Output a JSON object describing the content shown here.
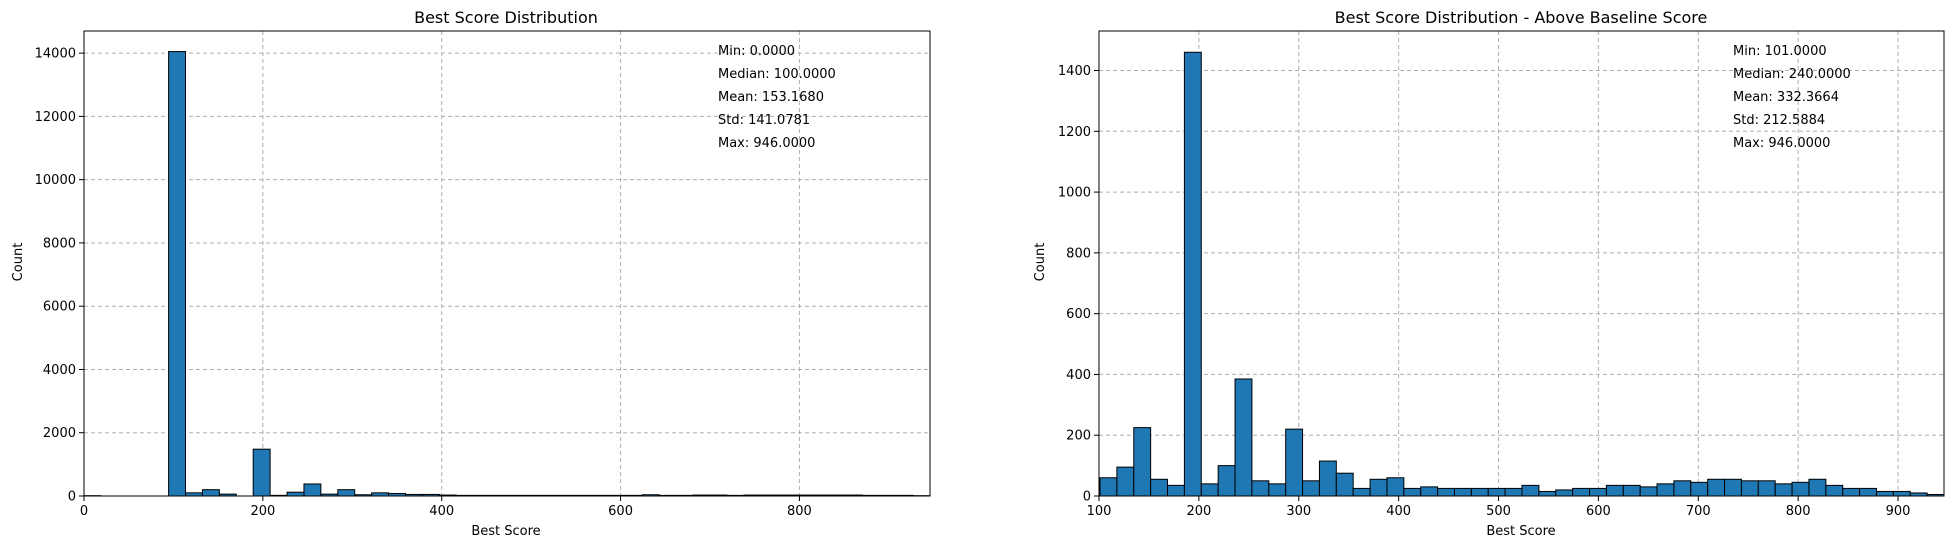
{
  "colors": {
    "bar_fill": "#1f77b4",
    "bar_edge": "#000000",
    "grid": "#b0b0b0"
  },
  "chart_data": [
    {
      "type": "bar",
      "title": "Best Score Distribution",
      "xlabel": "Best Score",
      "ylabel": "Count",
      "xlim": [
        0,
        946
      ],
      "ylim": [
        0,
        14700
      ],
      "x_ticks": [
        0,
        200,
        400,
        600,
        800
      ],
      "y_ticks": [
        0,
        2000,
        4000,
        6000,
        8000,
        10000,
        12000,
        14000
      ],
      "grid": true,
      "bin_width": 18.92,
      "bin_start": 0,
      "values": [
        10,
        0,
        0,
        0,
        0,
        14050,
        100,
        200,
        60,
        0,
        1480,
        20,
        120,
        380,
        60,
        200,
        40,
        100,
        80,
        50,
        50,
        30,
        20,
        20,
        20,
        20,
        20,
        20,
        20,
        20,
        20,
        20,
        20,
        40,
        20,
        20,
        30,
        30,
        20,
        30,
        30,
        30,
        30,
        30,
        30,
        30,
        20,
        20,
        20,
        10
      ],
      "stats": [
        "Min: 0.0000",
        "Median: 100.0000",
        "Mean: 153.1680",
        "Std: 141.0781",
        "Max: 946.0000"
      ]
    },
    {
      "type": "bar",
      "title": "Best Score Distribution - Above Baseline Score",
      "xlabel": "Best Score",
      "ylabel": "Count",
      "xlim": [
        100,
        946
      ],
      "ylim": [
        0,
        1530
      ],
      "x_ticks": [
        100,
        200,
        300,
        400,
        500,
        600,
        700,
        800,
        900
      ],
      "y_ticks": [
        0,
        200,
        400,
        600,
        800,
        1000,
        1200,
        1400
      ],
      "grid": true,
      "bin_width": 16.9,
      "bin_start": 101,
      "values": [
        60,
        95,
        225,
        55,
        35,
        1460,
        40,
        100,
        385,
        50,
        40,
        220,
        50,
        115,
        75,
        25,
        55,
        60,
        25,
        30,
        25,
        25,
        25,
        25,
        25,
        35,
        15,
        20,
        25,
        25,
        35,
        35,
        30,
        40,
        50,
        45,
        55,
        55,
        50,
        50,
        40,
        45,
        55,
        35,
        25,
        25,
        15,
        15,
        10,
        5
      ],
      "stats": [
        "Min: 101.0000",
        "Median: 240.0000",
        "Mean: 332.3664",
        "Std: 212.5884",
        "Max: 946.0000"
      ]
    }
  ]
}
